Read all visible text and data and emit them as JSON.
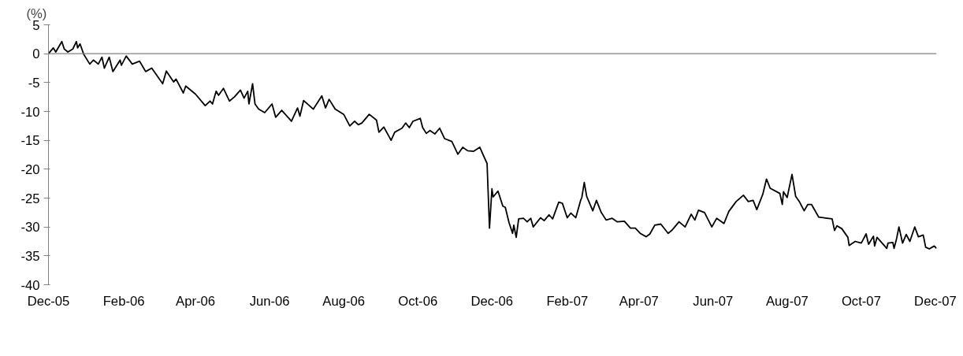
{
  "chart_data": {
    "type": "line",
    "ylabel": "(%)",
    "xlim": [
      "2005-12-01",
      "2007-12-02"
    ],
    "xticks": [
      {
        "value": "2005-12-01",
        "label": "Dec-05"
      },
      {
        "value": "2006-02-01",
        "label": "Feb-06"
      },
      {
        "value": "2006-04-01",
        "label": "Apr-06"
      },
      {
        "value": "2006-06-01",
        "label": "Jun-06"
      },
      {
        "value": "2006-08-01",
        "label": "Aug-06"
      },
      {
        "value": "2006-10-01",
        "label": "Oct-06"
      },
      {
        "value": "2006-12-01",
        "label": "Dec-06"
      },
      {
        "value": "2007-02-01",
        "label": "Feb-07"
      },
      {
        "value": "2007-04-01",
        "label": "Apr-07"
      },
      {
        "value": "2007-06-01",
        "label": "Jun-07"
      },
      {
        "value": "2007-08-01",
        "label": "Aug-07"
      },
      {
        "value": "2007-10-01",
        "label": "Oct-07"
      },
      {
        "value": "2007-12-01",
        "label": "Dec-07"
      }
    ],
    "ylim": [
      -40,
      5
    ],
    "yticks": [
      5,
      0,
      -5,
      -10,
      -15,
      -20,
      -25,
      -30,
      -35,
      -40
    ],
    "grid": false,
    "marker": "none",
    "line_style": "solid",
    "ref_lines": [
      {
        "axis": "y",
        "value": 0,
        "color": "#808080"
      }
    ],
    "series": [
      {
        "color": "#000000",
        "x": [
          "2005-12-01",
          "2005-12-05",
          "2005-12-07",
          "2005-12-12",
          "2005-12-14",
          "2005-12-17",
          "2005-12-21",
          "2005-12-24",
          "2005-12-25",
          "2005-12-27",
          "2005-12-30",
          "2006-01-04",
          "2006-01-07",
          "2006-01-11",
          "2006-01-14",
          "2006-01-16",
          "2006-01-20",
          "2006-01-23",
          "2006-01-29",
          "2006-01-30",
          "2006-02-03",
          "2006-02-08",
          "2006-02-14",
          "2006-02-19",
          "2006-02-24",
          "2006-03-05",
          "2006-03-08",
          "2006-03-14",
          "2006-03-16",
          "2006-03-22",
          "2006-03-24",
          "2006-04-01",
          "2006-04-09",
          "2006-04-13",
          "2006-04-15",
          "2006-04-18",
          "2006-04-20",
          "2006-04-24",
          "2006-04-29",
          "2006-05-03",
          "2006-05-08",
          "2006-05-11",
          "2006-05-14",
          "2006-05-15",
          "2006-05-18",
          "2006-05-20",
          "2006-05-23",
          "2006-05-28",
          "2006-06-03",
          "2006-06-06",
          "2006-06-11",
          "2006-06-19",
          "2006-06-24",
          "2006-06-26",
          "2006-06-29",
          "2006-07-07",
          "2006-07-14",
          "2006-07-17",
          "2006-07-20",
          "2006-07-25",
          "2006-08-01",
          "2006-08-06",
          "2006-08-10",
          "2006-08-13",
          "2006-08-16",
          "2006-08-22",
          "2006-08-28",
          "2006-08-30",
          "2006-09-03",
          "2006-09-09",
          "2006-09-12",
          "2006-09-18",
          "2006-09-21",
          "2006-09-24",
          "2006-09-27",
          "2006-10-03",
          "2006-10-05",
          "2006-10-08",
          "2006-10-11",
          "2006-10-15",
          "2006-10-19",
          "2006-10-23",
          "2006-10-29",
          "2006-11-03",
          "2006-11-07",
          "2006-11-11",
          "2006-11-16",
          "2006-11-21",
          "2006-11-25",
          "2006-11-27",
          "2006-11-29",
          "2006-12-01",
          "2006-12-02",
          "2006-12-06",
          "2006-12-10",
          "2006-12-12",
          "2006-12-15",
          "2006-12-18",
          "2006-12-19",
          "2006-12-21",
          "2006-12-23",
          "2006-12-27",
          "2006-12-30",
          "2007-01-02",
          "2007-01-04",
          "2007-01-10",
          "2007-01-13",
          "2007-01-17",
          "2007-01-20",
          "2007-01-25",
          "2007-01-28",
          "2007-02-01",
          "2007-02-04",
          "2007-02-08",
          "2007-02-12",
          "2007-02-13",
          "2007-02-15",
          "2007-02-17",
          "2007-02-22",
          "2007-02-25",
          "2007-03-01",
          "2007-03-05",
          "2007-03-10",
          "2007-03-14",
          "2007-03-20",
          "2007-03-25",
          "2007-03-29",
          "2007-04-02",
          "2007-04-07",
          "2007-04-10",
          "2007-04-14",
          "2007-04-19",
          "2007-04-25",
          "2007-04-28",
          "2007-05-04",
          "2007-05-09",
          "2007-05-14",
          "2007-05-17",
          "2007-05-20",
          "2007-05-25",
          "2007-05-31",
          "2007-06-04",
          "2007-06-10",
          "2007-06-14",
          "2007-06-20",
          "2007-06-26",
          "2007-06-30",
          "2007-07-04",
          "2007-07-07",
          "2007-07-12",
          "2007-07-15",
          "2007-07-18",
          "2007-07-26",
          "2007-07-28",
          "2007-07-29",
          "2007-08-01",
          "2007-08-05",
          "2007-08-08",
          "2007-08-11",
          "2007-08-15",
          "2007-08-18",
          "2007-08-21",
          "2007-08-27",
          "2007-09-03",
          "2007-09-07",
          "2007-09-09",
          "2007-09-11",
          "2007-09-15",
          "2007-09-20",
          "2007-09-21",
          "2007-09-26",
          "2007-10-01",
          "2007-10-05",
          "2007-10-07",
          "2007-10-11",
          "2007-10-12",
          "2007-10-14",
          "2007-10-22",
          "2007-10-23",
          "2007-10-27",
          "2007-10-28",
          "2007-10-30",
          "2007-11-01",
          "2007-11-04",
          "2007-11-07",
          "2007-11-10",
          "2007-11-14",
          "2007-11-17",
          "2007-11-21",
          "2007-11-23",
          "2007-11-26",
          "2007-11-30",
          "2007-12-02"
        ],
        "values": [
          0,
          1.0,
          0.3,
          2.1,
          0.8,
          0.3,
          0.8,
          2.1,
          1.0,
          1.7,
          -0.1,
          -1.8,
          -1.1,
          -1.8,
          -0.6,
          -2.5,
          -0.6,
          -3.1,
          -1.1,
          -2.0,
          -0.4,
          -1.8,
          -1.3,
          -3.1,
          -2.5,
          -5.2,
          -3.0,
          -4.9,
          -4.4,
          -6.8,
          -5.6,
          -7.0,
          -9.0,
          -8.2,
          -8.7,
          -6.5,
          -7.2,
          -6.0,
          -8.2,
          -7.5,
          -6.3,
          -7.7,
          -6.5,
          -8.7,
          -5.2,
          -8.7,
          -9.6,
          -10.2,
          -8.7,
          -11.0,
          -9.8,
          -11.7,
          -9.4,
          -10.8,
          -8.1,
          -9.6,
          -7.3,
          -9.4,
          -7.9,
          -9.6,
          -10.5,
          -12.5,
          -11.7,
          -12.3,
          -12.0,
          -10.5,
          -11.5,
          -13.6,
          -12.7,
          -15.0,
          -13.6,
          -12.9,
          -12.0,
          -12.8,
          -11.7,
          -11.2,
          -12.8,
          -13.8,
          -13.3,
          -13.9,
          -12.9,
          -14.7,
          -15.2,
          -17.4,
          -16.2,
          -16.8,
          -16.9,
          -16.2,
          -18.1,
          -19.0,
          -30.2,
          -23.4,
          -24.8,
          -23.8,
          -26.4,
          -26.6,
          -29.2,
          -31.1,
          -29.7,
          -31.8,
          -28.6,
          -28.5,
          -29.1,
          -28.5,
          -30.0,
          -28.4,
          -28.9,
          -27.9,
          -28.6,
          -25.7,
          -25.9,
          -28.4,
          -27.6,
          -28.4,
          -25.4,
          -24.9,
          -22.3,
          -24.7,
          -27.2,
          -25.4,
          -27.5,
          -28.8,
          -28.5,
          -29.1,
          -29.0,
          -30.2,
          -30.2,
          -31.1,
          -31.7,
          -31.2,
          -29.7,
          -29.5,
          -31.1,
          -30.6,
          -29.1,
          -30.0,
          -27.8,
          -28.8,
          -27.1,
          -27.5,
          -30.0,
          -28.5,
          -29.4,
          -27.3,
          -25.6,
          -24.5,
          -25.6,
          -25.4,
          -27.0,
          -24.3,
          -21.7,
          -23.3,
          -24.2,
          -26.1,
          -23.9,
          -24.9,
          -20.9,
          -24.7,
          -25.6,
          -27.2,
          -26.1,
          -26.1,
          -28.3,
          -28.5,
          -28.6,
          -30.6,
          -29.8,
          -30.3,
          -31.8,
          -33.2,
          -32.5,
          -32.8,
          -31.2,
          -33.0,
          -31.6,
          -33.3,
          -31.8,
          -33.7,
          -32.8,
          -32.7,
          -33.7,
          -32.1,
          -30.0,
          -32.8,
          -31.3,
          -32.5,
          -30.0,
          -31.7,
          -31.4,
          -33.5,
          -33.8,
          -33.3,
          -33.7
        ]
      }
    ]
  }
}
